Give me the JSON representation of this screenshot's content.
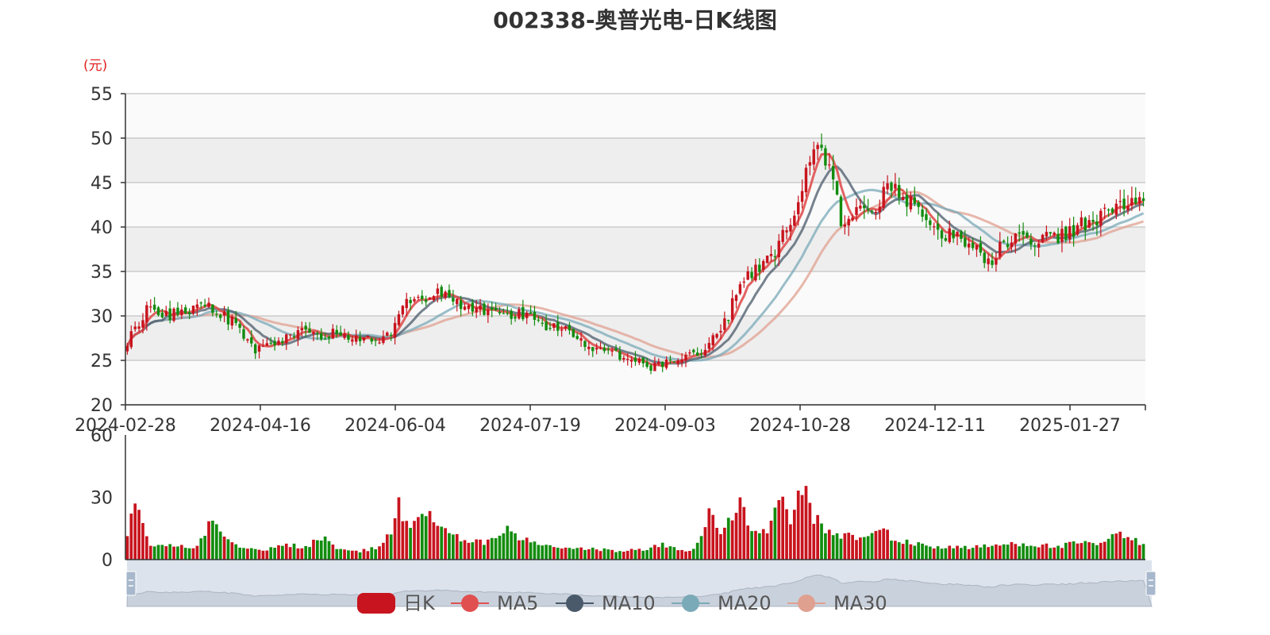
{
  "chart_data": {
    "type": "candlestick",
    "title": "002338-奥普光电-日K线图",
    "y_unit": "(元)",
    "x_tick_labels": [
      "2024-02-28",
      "2024-04-16",
      "2024-06-04",
      "2024-07-19",
      "2024-09-03",
      "2024-10-28",
      "2024-12-11",
      "2025-01-27"
    ],
    "price_axis": {
      "min": 20,
      "max": 55,
      "ticks": [
        20,
        25,
        30,
        35,
        40,
        45,
        50,
        55
      ]
    },
    "volume_axis": {
      "min": 0,
      "max": 60,
      "ticks": [
        0,
        30,
        60
      ]
    },
    "legend": [
      "日K",
      "MA5",
      "MA10",
      "MA20",
      "MA30"
    ],
    "colors": {
      "up": "#c8141e",
      "down": "#138c0e",
      "MA5": "#e05050",
      "MA10": "#4a5a6a",
      "MA20": "#7aaab8",
      "MA30": "#e0a090",
      "band_light": "#fafafa",
      "band_dark": "#eeeeee",
      "grid": "#cccccc",
      "slider_bg": "#dde3ec",
      "slider_area": "#b8c2cf"
    },
    "close_anchors": [
      [
        0,
        27
      ],
      [
        5,
        31
      ],
      [
        10,
        30
      ],
      [
        15,
        30.5
      ],
      [
        20,
        31
      ],
      [
        25,
        30
      ],
      [
        28,
        29
      ],
      [
        33,
        26
      ],
      [
        38,
        27
      ],
      [
        45,
        28
      ],
      [
        50,
        28
      ],
      [
        55,
        28
      ],
      [
        60,
        27.5
      ],
      [
        64,
        27
      ],
      [
        68,
        28
      ],
      [
        72,
        32
      ],
      [
        76,
        32
      ],
      [
        80,
        33
      ],
      [
        84,
        32
      ],
      [
        88,
        31
      ],
      [
        95,
        30.5
      ],
      [
        102,
        30
      ],
      [
        108,
        29
      ],
      [
        114,
        28
      ],
      [
        118,
        27
      ],
      [
        124,
        26
      ],
      [
        130,
        25
      ],
      [
        134,
        24.2
      ],
      [
        140,
        25
      ],
      [
        145,
        25.5
      ],
      [
        150,
        26.5
      ],
      [
        155,
        30
      ],
      [
        158,
        34
      ],
      [
        162,
        35
      ],
      [
        167,
        37
      ],
      [
        171,
        41
      ],
      [
        175,
        46
      ],
      [
        178,
        49
      ],
      [
        181,
        46
      ],
      [
        184,
        41
      ],
      [
        188,
        42
      ],
      [
        192,
        41
      ],
      [
        196,
        45
      ],
      [
        200,
        43
      ],
      [
        205,
        42
      ],
      [
        210,
        39
      ],
      [
        214,
        39
      ],
      [
        218,
        38
      ],
      [
        222,
        36
      ],
      [
        226,
        38
      ],
      [
        230,
        39
      ],
      [
        235,
        38.5
      ],
      [
        240,
        39
      ],
      [
        245,
        40
      ],
      [
        250,
        41
      ],
      [
        255,
        42
      ],
      [
        260,
        42.5
      ],
      [
        262,
        43
      ]
    ],
    "volume_anchors": [
      [
        0,
        13
      ],
      [
        2,
        26
      ],
      [
        4,
        15
      ],
      [
        6,
        7
      ],
      [
        12,
        7
      ],
      [
        18,
        6
      ],
      [
        22,
        22
      ],
      [
        25,
        12
      ],
      [
        28,
        7
      ],
      [
        35,
        5
      ],
      [
        40,
        7
      ],
      [
        46,
        6
      ],
      [
        50,
        11
      ],
      [
        54,
        5
      ],
      [
        60,
        4
      ],
      [
        64,
        6
      ],
      [
        68,
        12
      ],
      [
        70,
        25
      ],
      [
        73,
        14
      ],
      [
        76,
        22
      ],
      [
        79,
        22
      ],
      [
        82,
        13
      ],
      [
        86,
        10
      ],
      [
        92,
        8
      ],
      [
        98,
        14
      ],
      [
        104,
        8
      ],
      [
        110,
        6
      ],
      [
        116,
        5
      ],
      [
        122,
        5
      ],
      [
        128,
        4
      ],
      [
        133,
        5
      ],
      [
        138,
        7
      ],
      [
        142,
        5
      ],
      [
        145,
        4
      ],
      [
        148,
        10
      ],
      [
        150,
        24
      ],
      [
        153,
        15
      ],
      [
        156,
        20
      ],
      [
        158,
        25
      ],
      [
        162,
        12
      ],
      [
        165,
        15
      ],
      [
        167,
        22
      ],
      [
        169,
        27
      ],
      [
        171,
        18
      ],
      [
        173,
        30
      ],
      [
        174,
        36
      ],
      [
        176,
        24
      ],
      [
        179,
        15
      ],
      [
        184,
        12
      ],
      [
        190,
        10
      ],
      [
        195,
        15
      ],
      [
        198,
        9
      ],
      [
        205,
        7
      ],
      [
        210,
        6
      ],
      [
        215,
        6
      ],
      [
        220,
        6
      ],
      [
        225,
        7
      ],
      [
        230,
        8
      ],
      [
        235,
        7
      ],
      [
        240,
        6
      ],
      [
        245,
        8
      ],
      [
        250,
        7
      ],
      [
        255,
        12
      ],
      [
        262,
        8
      ]
    ]
  }
}
